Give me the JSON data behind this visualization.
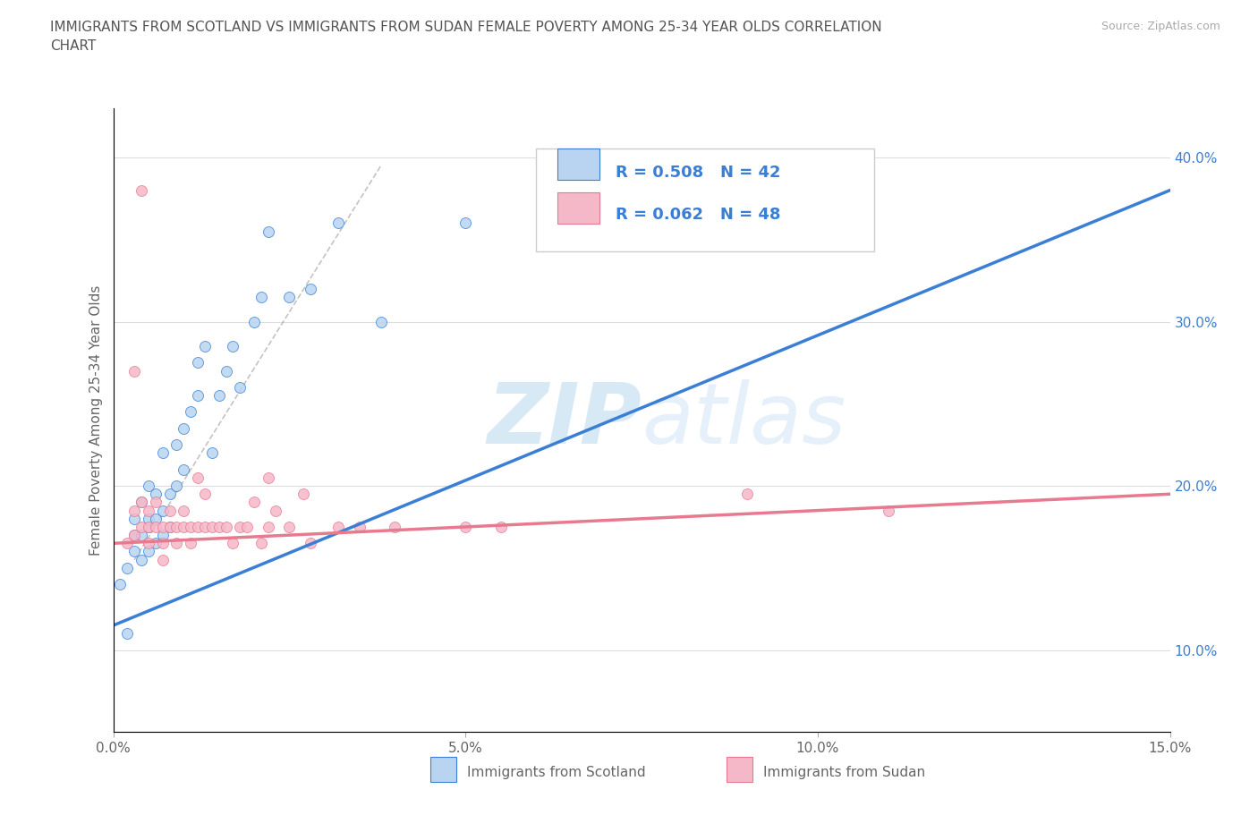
{
  "title": "IMMIGRANTS FROM SCOTLAND VS IMMIGRANTS FROM SUDAN FEMALE POVERTY AMONG 25-34 YEAR OLDS CORRELATION\nCHART",
  "source": "Source: ZipAtlas.com",
  "xlabel_bottom": [
    "Immigrants from Scotland",
    "Immigrants from Sudan"
  ],
  "ylabel": "Female Poverty Among 25-34 Year Olds",
  "xlim": [
    0.0,
    0.15
  ],
  "ylim": [
    0.05,
    0.43
  ],
  "yticks": [
    0.1,
    0.2,
    0.3,
    0.4
  ],
  "ytick_labels": [
    "10.0%",
    "20.0%",
    "30.0%",
    "40.0%"
  ],
  "xticks": [
    0.0,
    0.05,
    0.1,
    0.15
  ],
  "xtick_labels": [
    "0.0%",
    "5.0%",
    "10.0%",
    "15.0%"
  ],
  "legend_r1": "R = 0.508",
  "legend_n1": "N = 42",
  "legend_r2": "R = 0.062",
  "legend_n2": "N = 48",
  "scotland_color": "#b8d4f0",
  "sudan_color": "#f5b8c8",
  "scotland_line_color": "#3a7fd5",
  "sudan_line_color": "#e87a90",
  "watermark_zip": "ZIP",
  "watermark_atlas": "atlas",
  "scotland_x": [
    0.001,
    0.002,
    0.002,
    0.003,
    0.003,
    0.003,
    0.004,
    0.004,
    0.004,
    0.005,
    0.005,
    0.005,
    0.005,
    0.006,
    0.006,
    0.006,
    0.007,
    0.007,
    0.007,
    0.008,
    0.008,
    0.009,
    0.009,
    0.01,
    0.01,
    0.011,
    0.012,
    0.012,
    0.013,
    0.014,
    0.015,
    0.016,
    0.017,
    0.018,
    0.02,
    0.021,
    0.022,
    0.025,
    0.028,
    0.032,
    0.038,
    0.05
  ],
  "scotland_y": [
    0.14,
    0.11,
    0.15,
    0.16,
    0.17,
    0.18,
    0.155,
    0.17,
    0.19,
    0.16,
    0.175,
    0.18,
    0.2,
    0.165,
    0.18,
    0.195,
    0.17,
    0.185,
    0.22,
    0.175,
    0.195,
    0.2,
    0.225,
    0.21,
    0.235,
    0.245,
    0.255,
    0.275,
    0.285,
    0.22,
    0.255,
    0.27,
    0.285,
    0.26,
    0.3,
    0.315,
    0.355,
    0.315,
    0.32,
    0.36,
    0.3,
    0.36
  ],
  "sudan_x": [
    0.002,
    0.003,
    0.003,
    0.004,
    0.004,
    0.005,
    0.005,
    0.005,
    0.006,
    0.006,
    0.007,
    0.007,
    0.008,
    0.008,
    0.009,
    0.009,
    0.01,
    0.01,
    0.011,
    0.011,
    0.012,
    0.012,
    0.013,
    0.013,
    0.014,
    0.015,
    0.016,
    0.017,
    0.018,
    0.019,
    0.02,
    0.021,
    0.022,
    0.023,
    0.025,
    0.027,
    0.028,
    0.032,
    0.035,
    0.04,
    0.05,
    0.055,
    0.09,
    0.11,
    0.003,
    0.004,
    0.007,
    0.022
  ],
  "sudan_y": [
    0.165,
    0.17,
    0.185,
    0.175,
    0.19,
    0.165,
    0.175,
    0.185,
    0.175,
    0.19,
    0.175,
    0.165,
    0.175,
    0.185,
    0.175,
    0.165,
    0.175,
    0.185,
    0.175,
    0.165,
    0.175,
    0.205,
    0.195,
    0.175,
    0.175,
    0.175,
    0.175,
    0.165,
    0.175,
    0.175,
    0.19,
    0.165,
    0.175,
    0.185,
    0.175,
    0.195,
    0.165,
    0.175,
    0.175,
    0.175,
    0.175,
    0.175,
    0.195,
    0.185,
    0.27,
    0.38,
    0.155,
    0.205
  ],
  "scotland_trend_x": [
    0.0,
    0.15
  ],
  "scotland_trend_y": [
    0.115,
    0.38
  ],
  "sudan_trend_x": [
    0.0,
    0.15
  ],
  "sudan_trend_y": [
    0.165,
    0.195
  ],
  "dashed_line_x": [
    0.003,
    0.038
  ],
  "dashed_line_y": [
    0.155,
    0.395
  ]
}
